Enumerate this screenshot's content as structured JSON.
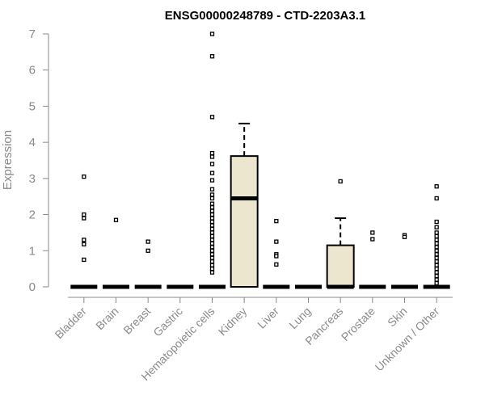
{
  "chart_data": {
    "type": "boxplot",
    "title": "ENSG00000248789 - CTD-2203A3.1",
    "xlabel": "",
    "ylabel": "Expression",
    "ylim": [
      0,
      7
    ],
    "yticks": [
      0,
      1,
      2,
      3,
      4,
      5,
      6,
      7
    ],
    "grid": false,
    "box_fill": "#ede6cf",
    "categories": [
      "Bladder",
      "Brain",
      "Breast",
      "Gastric",
      "Hematopoietic cells",
      "Kidney",
      "Liver",
      "Lung",
      "Pancreas",
      "Prostate",
      "Skin",
      "Unknown / Other"
    ],
    "boxes": [
      {
        "q1": 0,
        "median": 0,
        "q3": 0,
        "whisker_low": 0,
        "whisker_high": 0,
        "outliers": [
          3.05,
          2.0,
          1.9,
          1.3,
          1.18,
          0.75
        ]
      },
      {
        "q1": 0,
        "median": 0,
        "q3": 0,
        "whisker_low": 0,
        "whisker_high": 0,
        "outliers": [
          1.85
        ]
      },
      {
        "q1": 0,
        "median": 0,
        "q3": 0,
        "whisker_low": 0,
        "whisker_high": 0,
        "outliers": [
          1.25,
          1.0
        ]
      },
      {
        "q1": 0,
        "median": 0,
        "q3": 0,
        "whisker_low": 0,
        "whisker_high": 0,
        "outliers": []
      },
      {
        "q1": 0,
        "median": 0,
        "q3": 0,
        "whisker_low": 0,
        "whisker_high": 0,
        "outliers": [
          7.0,
          6.38,
          4.7,
          3.7,
          3.6,
          3.4,
          3.15,
          2.95,
          2.7,
          2.55,
          2.45,
          2.3,
          2.2,
          2.1,
          2.0,
          1.9,
          1.8,
          1.7,
          1.6,
          1.5,
          1.4,
          1.3,
          1.2,
          1.1,
          1.0,
          0.9,
          0.8,
          0.7,
          0.6,
          0.5,
          0.4
        ]
      },
      {
        "q1": 0,
        "median": 2.45,
        "q3": 3.62,
        "whisker_low": 0,
        "whisker_high": 4.52,
        "outliers": []
      },
      {
        "q1": 0,
        "median": 0,
        "q3": 0,
        "whisker_low": 0,
        "whisker_high": 0,
        "outliers": [
          1.82,
          1.25,
          0.9,
          0.85,
          0.62
        ]
      },
      {
        "q1": 0,
        "median": 0,
        "q3": 0,
        "whisker_low": 0,
        "whisker_high": 0,
        "outliers": []
      },
      {
        "q1": 0,
        "median": 0,
        "q3": 1.15,
        "whisker_low": 0,
        "whisker_high": 1.9,
        "outliers": [
          2.92
        ]
      },
      {
        "q1": 0,
        "median": 0,
        "q3": 0,
        "whisker_low": 0,
        "whisker_high": 0,
        "outliers": [
          1.5,
          1.32
        ]
      },
      {
        "q1": 0,
        "median": 0,
        "q3": 0,
        "whisker_low": 0,
        "whisker_high": 0,
        "outliers": [
          1.43,
          1.38
        ]
      },
      {
        "q1": 0,
        "median": 0,
        "q3": 0,
        "whisker_low": 0,
        "whisker_high": 0,
        "outliers": [
          2.78,
          2.45,
          1.8,
          1.65,
          1.5,
          1.4,
          1.3,
          1.2,
          1.1,
          1.0,
          0.9,
          0.8,
          0.7,
          0.6,
          0.5,
          0.4,
          0.3,
          0.2,
          0.1
        ]
      }
    ]
  }
}
